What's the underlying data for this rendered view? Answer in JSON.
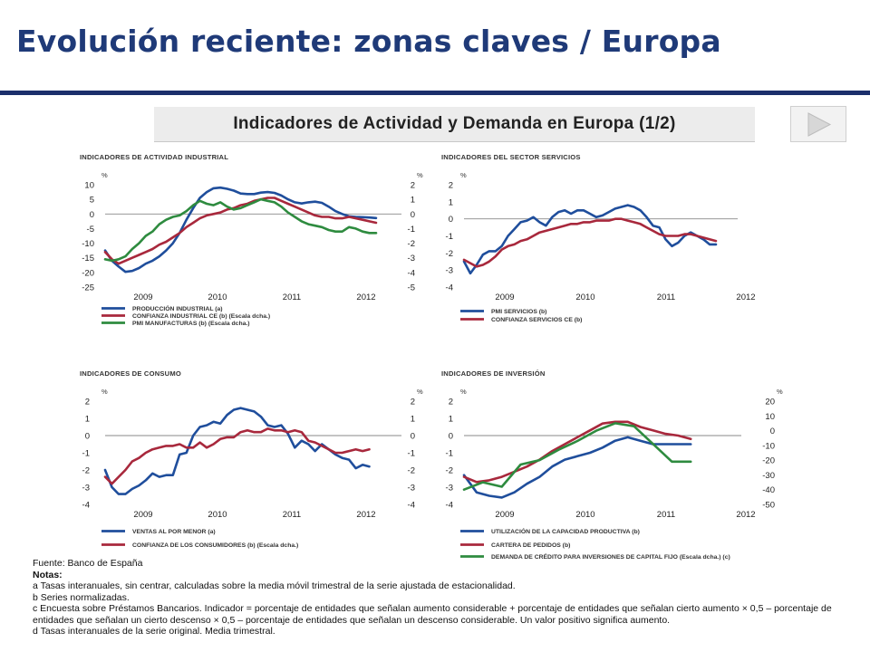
{
  "header": {
    "title": "Evolución reciente:  zonas claves / Europa",
    "subtitle": "Indicadores de Actividad y Demanda en Europa (1/2)"
  },
  "colors": {
    "blue": "#1f4e9c",
    "red": "#a8283c",
    "green": "#2e8b3f",
    "title": "#1f3a78"
  },
  "icons": {
    "next": "play-triangle-icon"
  },
  "notes": {
    "source": "Fuente: Banco de España",
    "heading": "Notas:",
    "lines": [
      "a Tasas interanuales, sin centrar, calculadas sobre la media móvil trimestral de la serie ajustada de estacionalidad.",
      "b Series normalizadas.",
      "c Encuesta sobre Préstamos Bancarios. Indicador = porcentaje de entidades que señalan aumento considerable + porcentaje de entidades que señalan cierto  aumento × 0,5 – porcentaje de entidades que señalan un cierto descenso × 0,5 – porcentaje de entidades que señalan un descenso considerable. Un valor positivo significa aumento.",
      "d Tasas interanuales de la serie original. Media trimestral."
    ]
  },
  "chart_data": [
    {
      "type": "line",
      "title": "INDICADORES DE ACTIVIDAD INDUSTRIAL",
      "unit_label": "%",
      "x_ticks": [
        "2009",
        "2010",
        "2011",
        "2012"
      ],
      "left_ylim": [
        -25,
        10
      ],
      "left_ticks": [
        10,
        5,
        0,
        -5,
        -10,
        -15,
        -20,
        -25
      ],
      "right_ylim": [
        -5,
        2
      ],
      "right_ticks": [
        2,
        1,
        0,
        -1,
        -2,
        -3,
        -4,
        -5
      ],
      "series": [
        {
          "name": "PRODUCCIÓN INDUSTRIAL (a)",
          "color": "blue",
          "axis": "left",
          "x": [
            0,
            1,
            2,
            3,
            4,
            5,
            6,
            7,
            8,
            9,
            10,
            11,
            12,
            13,
            14,
            15,
            16,
            17,
            18,
            19,
            20,
            21,
            22,
            23,
            24,
            25,
            26,
            27,
            28,
            29,
            30,
            31,
            32,
            33,
            34,
            35,
            36,
            37,
            38,
            39,
            40
          ],
          "y": [
            -12.5,
            -16,
            -18,
            -19.8,
            -19.5,
            -18.5,
            -17,
            -16,
            -14.5,
            -12.5,
            -10,
            -6.5,
            -2,
            2,
            5.5,
            7.5,
            8.8,
            9,
            8.6,
            8,
            7,
            6.8,
            6.8,
            7.3,
            7.5,
            7.2,
            6.3,
            5,
            4,
            3.6,
            4,
            4.2,
            3.8,
            2.5,
            1,
            0,
            -0.8,
            -1,
            -1.1,
            -1.2,
            -1.4
          ]
        },
        {
          "name": "CONFIANZA INDUSTRIAL CE (b) (Escala dcha.)",
          "color": "red",
          "axis": "right",
          "x": [
            0,
            1,
            2,
            3,
            4,
            5,
            6,
            7,
            8,
            9,
            10,
            11,
            12,
            13,
            14,
            15,
            16,
            17,
            18,
            19,
            20,
            21,
            22,
            23,
            24,
            25,
            26,
            27,
            28,
            29,
            30,
            31,
            32,
            33,
            34,
            35,
            36,
            37,
            38,
            39,
            40
          ],
          "y": [
            -2.6,
            -3.1,
            -3.4,
            -3.2,
            -3,
            -2.8,
            -2.6,
            -2.4,
            -2.1,
            -1.9,
            -1.6,
            -1.3,
            -0.9,
            -0.6,
            -0.3,
            -0.1,
            0,
            0.1,
            0.3,
            0.4,
            0.6,
            0.7,
            0.9,
            1,
            1.1,
            1.1,
            0.9,
            0.7,
            0.5,
            0.3,
            0.1,
            -0.1,
            -0.2,
            -0.2,
            -0.3,
            -0.3,
            -0.2,
            -0.3,
            -0.4,
            -0.5,
            -0.6
          ]
        },
        {
          "name": "PMI MANUFACTURAS (b) (Escala dcha.)",
          "color": "green",
          "axis": "right",
          "x": [
            0,
            1,
            2,
            3,
            4,
            5,
            6,
            7,
            8,
            9,
            10,
            11,
            12,
            13,
            14,
            15,
            16,
            17,
            18,
            19,
            20,
            21,
            22,
            23,
            24,
            25,
            26,
            27,
            28,
            29,
            30,
            31,
            32,
            33,
            34,
            35,
            36,
            37,
            38,
            39,
            40
          ],
          "y": [
            -3.1,
            -3.2,
            -3.1,
            -2.9,
            -2.4,
            -2,
            -1.5,
            -1.2,
            -0.7,
            -0.4,
            -0.2,
            -0.1,
            0.2,
            0.6,
            0.9,
            0.7,
            0.6,
            0.8,
            0.5,
            0.3,
            0.4,
            0.6,
            0.8,
            1,
            0.9,
            0.8,
            0.5,
            0.1,
            -0.2,
            -0.5,
            -0.7,
            -0.8,
            -0.9,
            -1.1,
            -1.2,
            -1.2,
            -0.9,
            -1,
            -1.2,
            -1.3,
            -1.3
          ]
        }
      ]
    },
    {
      "type": "line",
      "title": "INDICADORES DEL SECTOR SERVICIOS",
      "unit_label": "%",
      "x_ticks": [
        "2009",
        "2010",
        "2011",
        "2012"
      ],
      "left_ylim": [
        -4,
        2
      ],
      "left_ticks": [
        2,
        1,
        0,
        -1,
        -2,
        -3,
        -4
      ],
      "series": [
        {
          "name": "PMI SERVICIOS (b)",
          "color": "blue",
          "axis": "left",
          "x": [
            0,
            1,
            2,
            3,
            4,
            5,
            6,
            7,
            8,
            9,
            10,
            11,
            12,
            13,
            14,
            15,
            16,
            17,
            18,
            19,
            20,
            21,
            22,
            23,
            24,
            25,
            26,
            27,
            28,
            29,
            30,
            31,
            32,
            33,
            34,
            35,
            36,
            37,
            38,
            39,
            40
          ],
          "y": [
            -2.5,
            -3.2,
            -2.7,
            -2.1,
            -1.9,
            -1.9,
            -1.6,
            -1,
            -0.6,
            -0.2,
            -0.1,
            0.1,
            -0.2,
            -0.4,
            0.1,
            0.4,
            0.5,
            0.3,
            0.5,
            0.5,
            0.3,
            0.1,
            0.2,
            0.4,
            0.6,
            0.7,
            0.8,
            0.7,
            0.5,
            0.1,
            -0.4,
            -0.5,
            -1.2,
            -1.6,
            -1.4,
            -1,
            -0.8,
            -1,
            -1.2,
            -1.5,
            -1.5
          ]
        },
        {
          "name": "CONFIANZA SERVICIOS CE (b)",
          "color": "red",
          "axis": "left",
          "x": [
            0,
            1,
            2,
            3,
            4,
            5,
            6,
            7,
            8,
            9,
            10,
            11,
            12,
            13,
            14,
            15,
            16,
            17,
            18,
            19,
            20,
            21,
            22,
            23,
            24,
            25,
            26,
            27,
            28,
            29,
            30,
            31,
            32,
            33,
            34,
            35,
            36,
            37,
            38,
            39,
            40
          ],
          "y": [
            -2.4,
            -2.6,
            -2.8,
            -2.7,
            -2.5,
            -2.2,
            -1.8,
            -1.6,
            -1.5,
            -1.3,
            -1.2,
            -1,
            -0.8,
            -0.7,
            -0.6,
            -0.5,
            -0.4,
            -0.3,
            -0.3,
            -0.2,
            -0.2,
            -0.1,
            -0.1,
            -0.1,
            0,
            0,
            -0.1,
            -0.2,
            -0.3,
            -0.5,
            -0.7,
            -0.9,
            -1,
            -1,
            -1,
            -0.9,
            -0.9,
            -1,
            -1.1,
            -1.2,
            -1.3
          ]
        }
      ]
    },
    {
      "type": "line",
      "title": "INDICADORES DE CONSUMO",
      "unit_label": "%",
      "x_ticks": [
        "2009",
        "2010",
        "2011",
        "2012"
      ],
      "left_ylim": [
        -4,
        2
      ],
      "left_ticks": [
        2,
        1,
        0,
        -1,
        -2,
        -3,
        -4
      ],
      "right_ylim": [
        -4,
        2
      ],
      "right_ticks": [
        2,
        1,
        0,
        -1,
        -2,
        -3,
        -4
      ],
      "series": [
        {
          "name": "VENTAS AL POR MENOR (a)",
          "color": "blue",
          "axis": "left",
          "x": [
            0,
            1,
            2,
            3,
            4,
            5,
            6,
            7,
            8,
            9,
            10,
            11,
            12,
            13,
            14,
            15,
            16,
            17,
            18,
            19,
            20,
            21,
            22,
            23,
            24,
            25,
            26,
            27,
            28,
            29,
            30,
            31,
            32,
            33,
            34,
            35,
            36,
            37,
            38,
            39
          ],
          "y": [
            -2,
            -3,
            -3.4,
            -3.4,
            -3.1,
            -2.9,
            -2.6,
            -2.2,
            -2.4,
            -2.3,
            -2.3,
            -1.1,
            -1,
            0,
            0.5,
            0.6,
            0.8,
            0.7,
            1.2,
            1.5,
            1.6,
            1.5,
            1.4,
            1.1,
            0.6,
            0.5,
            0.6,
            0.1,
            -0.7,
            -0.3,
            -0.5,
            -0.9,
            -0.5,
            -0.8,
            -1.1,
            -1.3,
            -1.4,
            -1.9,
            -1.7,
            -1.8
          ]
        },
        {
          "name": "CONFIANZA DE LOS CONSUMIDORES (b) (Escala dcha.)",
          "color": "red",
          "axis": "right",
          "x": [
            0,
            1,
            2,
            3,
            4,
            5,
            6,
            7,
            8,
            9,
            10,
            11,
            12,
            13,
            14,
            15,
            16,
            17,
            18,
            19,
            20,
            21,
            22,
            23,
            24,
            25,
            26,
            27,
            28,
            29,
            30,
            31,
            32,
            33,
            34,
            35,
            36,
            37,
            38,
            39
          ],
          "y": [
            -2.4,
            -2.8,
            -2.4,
            -2,
            -1.5,
            -1.3,
            -1,
            -0.8,
            -0.7,
            -0.6,
            -0.6,
            -0.5,
            -0.7,
            -0.7,
            -0.4,
            -0.7,
            -0.5,
            -0.2,
            -0.1,
            -0.1,
            0.2,
            0.3,
            0.2,
            0.2,
            0.4,
            0.3,
            0.3,
            0.2,
            0.3,
            0.2,
            -0.3,
            -0.4,
            -0.6,
            -0.8,
            -1,
            -1,
            -0.9,
            -0.8,
            -0.9,
            -0.8
          ]
        }
      ]
    },
    {
      "type": "line",
      "title": "INDICADORES DE INVERSIÓN",
      "unit_label": "%",
      "x_ticks": [
        "2009",
        "2010",
        "2011",
        "2012"
      ],
      "left_ylim": [
        -4,
        2
      ],
      "left_ticks": [
        2,
        1,
        0,
        -1,
        -2,
        -3,
        -4
      ],
      "right_ylim": [
        -50,
        20
      ],
      "right_ticks": [
        20,
        10,
        0,
        -10,
        -20,
        -30,
        -40,
        -50
      ],
      "series": [
        {
          "name": "UTILIZACIÓN DE LA CAPACIDAD PRODUCTIVA (b)",
          "color": "blue",
          "axis": "left",
          "x": [
            0,
            2,
            4,
            6,
            8,
            10,
            12,
            14,
            16,
            18,
            20,
            22,
            24,
            26,
            28,
            30,
            32,
            34,
            36
          ],
          "y": [
            -2.3,
            -3.3,
            -3.5,
            -3.6,
            -3.3,
            -2.8,
            -2.4,
            -1.8,
            -1.4,
            -1.2,
            -1,
            -0.7,
            -0.3,
            -0.1,
            -0.3,
            -0.5,
            -0.5,
            -0.5,
            -0.5
          ]
        },
        {
          "name": "CARTERA DE PEDIDOS (b)",
          "color": "red",
          "axis": "left",
          "x": [
            0,
            2,
            4,
            6,
            8,
            10,
            12,
            14,
            16,
            18,
            20,
            22,
            24,
            26,
            28,
            30,
            32,
            34,
            36
          ],
          "y": [
            -2.4,
            -2.7,
            -2.6,
            -2.4,
            -2.1,
            -1.8,
            -1.4,
            -0.9,
            -0.5,
            -0.1,
            0.3,
            0.7,
            0.8,
            0.8,
            0.5,
            0.3,
            0.1,
            0,
            -0.2
          ]
        },
        {
          "name": "DEMANDA DE CRÉDITO PARA INVERSIONES DE CAPITAL FIJO (Escala dcha.) (c)",
          "color": "green",
          "axis": "right",
          "x": [
            0,
            3,
            6,
            9,
            12,
            15,
            18,
            21,
            24,
            27,
            30,
            33,
            36
          ],
          "y": [
            -40,
            -35,
            -38,
            -23,
            -20,
            -13,
            -7,
            0,
            5,
            3,
            -9,
            -21,
            -21
          ]
        }
      ]
    }
  ]
}
